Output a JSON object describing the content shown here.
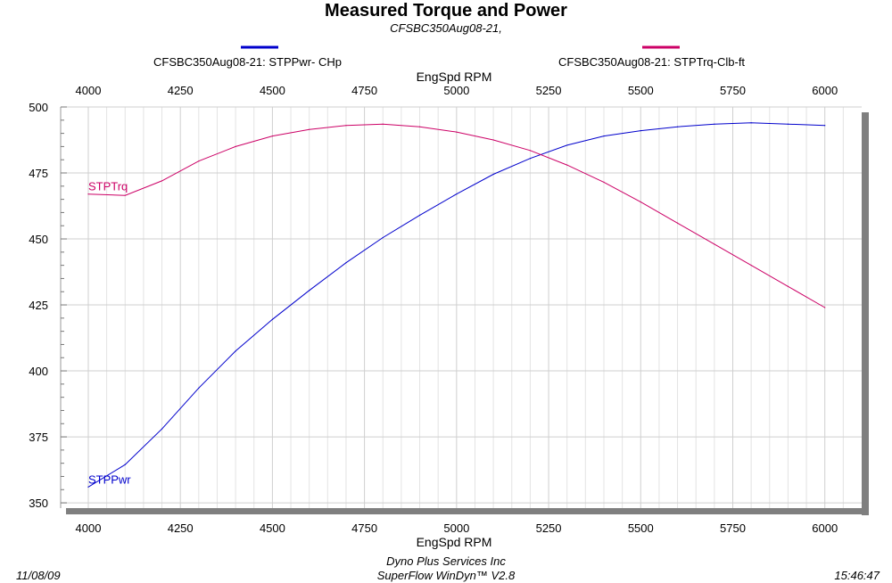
{
  "header": {
    "title": "Measured Torque and Power",
    "subtitle": "CFSBC350Aug08-21,"
  },
  "legend": [
    {
      "label": "CFSBC350Aug08-21: STPPwr- CHp",
      "color": "#0000cc"
    },
    {
      "label": "CFSBC350Aug08-21: STPTrq-Clb-ft",
      "color": "#cc0066"
    }
  ],
  "footer": {
    "date": "11/08/09",
    "company": "Dyno Plus Services Inc",
    "software": "SuperFlow WinDyn™ V2.8",
    "time": "15:46:47"
  },
  "chart_data": {
    "type": "line",
    "title": "Measured Torque and Power",
    "subtitle": "CFSBC350Aug08-21,",
    "xlabel": "EngSpd  RPM",
    "xlim": [
      3925,
      6100
    ],
    "ylim": [
      348,
      500
    ],
    "x_ticks": [
      4000,
      4250,
      4500,
      4750,
      5000,
      5250,
      5500,
      5750,
      6000
    ],
    "y_ticks": [
      350,
      375,
      400,
      425,
      450,
      475,
      500
    ],
    "grid": true,
    "legend_position": "top",
    "x": [
      4000,
      4100,
      4200,
      4300,
      4400,
      4500,
      4600,
      4700,
      4800,
      4900,
      5000,
      5100,
      5200,
      5300,
      5400,
      5500,
      5600,
      5700,
      5800,
      5900,
      6000
    ],
    "series": [
      {
        "name": "STPPwr",
        "legend": "CFSBC350Aug08-21: STPPwr- CHp",
        "color": "#0000cc",
        "values": [
          356,
          364.5,
          378,
          393.5,
          407.5,
          419.5,
          430.5,
          441,
          450.5,
          459,
          467,
          474.5,
          480.5,
          485.5,
          489,
          491,
          492.5,
          493.5,
          494,
          493.5,
          493
        ]
      },
      {
        "name": "STPTrq",
        "legend": "CFSBC350Aug08-21: STPTrq-Clb-ft",
        "color": "#cc0066",
        "values": [
          467,
          466.5,
          472,
          479.5,
          485,
          489,
          491.5,
          493,
          493.5,
          492.5,
          490.5,
          487.5,
          483.5,
          478,
          471.5,
          464,
          456,
          448,
          440,
          432,
          424
        ]
      }
    ]
  }
}
